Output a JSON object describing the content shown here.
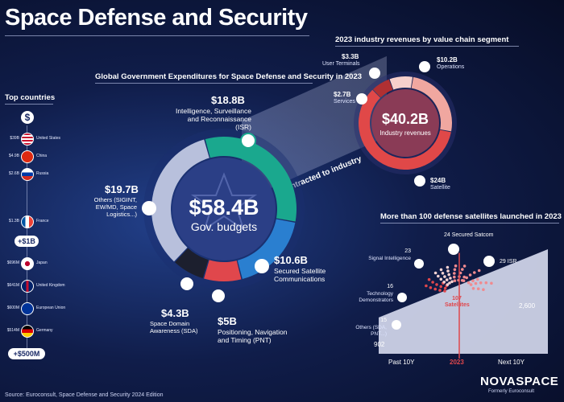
{
  "title": "Space Defense and Security",
  "left_panel": {
    "title": "Top countries",
    "rows": [
      {
        "value": "$39B",
        "country": "United States",
        "flag": "us-flag"
      },
      {
        "value": "$4.9B",
        "country": "China",
        "flag": "china-flag"
      },
      {
        "value": "$2.6B",
        "country": "Russia",
        "flag": "russia-flag"
      },
      {
        "value": "$1.3B",
        "country": "France",
        "flag": "france-flag"
      },
      {
        "value": "$696M",
        "country": "Japan",
        "flag": "japan-flag"
      },
      {
        "value": "$641M",
        "country": "United Kingdom",
        "flag": "uk-flag"
      },
      {
        "value": "$600M",
        "country": "European Union",
        "flag": "eu-flag"
      },
      {
        "value": "$514M",
        "country": "Germany",
        "flag": "germany-flag"
      }
    ],
    "threshold_1": "+$1B",
    "threshold_2": "+$500M"
  },
  "chart_data": [
    {
      "type": "pie",
      "title": "Global Government Expenditures for Space Defense and Security in 2023",
      "center_value": "$58.4B",
      "center_label": "Gov. budgets",
      "slices": [
        {
          "label": "Intelligence, Surveillance and Reconnaissance (ISR)",
          "value": 18.8,
          "display": "$18.8B",
          "color": "#1aa88e"
        },
        {
          "label": "Secured Satellite Communications",
          "value": 10.6,
          "display": "$10.6B",
          "color": "#2a7fd0"
        },
        {
          "label": "Positioning, Navigation and Timing (PNT)",
          "value": 5,
          "display": "$5B",
          "color": "#e0474c"
        },
        {
          "label": "Space Domain Awareness (SDA)",
          "value": 4.3,
          "display": "$4.3B",
          "color": "#1c1f2e"
        },
        {
          "label": "Others (SIGINT, EW/MD, Space Logistics...)",
          "value": 19.7,
          "display": "$19.7B",
          "color": "#b8c0dc"
        }
      ]
    },
    {
      "type": "pie",
      "title": "2023 industry revenues by value chain segment",
      "center_value": "$40.2B",
      "center_label": "Industry revenues",
      "slices": [
        {
          "label": "Operations",
          "value": 10.2,
          "display": "$10.2B",
          "color": "#f0a7a0"
        },
        {
          "label": "Satellite",
          "value": 24,
          "display": "$24B",
          "color": "#e04848"
        },
        {
          "label": "Services",
          "value": 2.7,
          "display": "$2.7B",
          "color": "#b03032"
        },
        {
          "label": "User Terminals",
          "value": 3.3,
          "display": "$3.3B",
          "color": "#f6d0cc"
        }
      ]
    },
    {
      "type": "area",
      "title": "More than 100 defense satellites launched in 2023",
      "x": [
        "Past 10Y",
        "2023",
        "Next 10Y"
      ],
      "values": [
        902,
        107,
        2600
      ],
      "value_labels": [
        "902",
        "107 Satellites",
        "2,600"
      ],
      "breakdown": [
        {
          "label": "Secured Satcom",
          "display": "24",
          "value": 24
        },
        {
          "label": "ISR",
          "display": "29",
          "value": 29
        },
        {
          "label": "Signal Intelligence",
          "display": "23",
          "value": 23
        },
        {
          "label": "Technology Demonstrators",
          "display": "16",
          "value": 16
        },
        {
          "label": "Others (SDA, PNT...)",
          "display": "15",
          "value": 15
        }
      ]
    }
  ],
  "band_label": "Contracted to industry",
  "logo": {
    "name": "NOVASPACE",
    "sub": "Formerly Euroconsult"
  },
  "source": "Source: Euroconsult, Space Defense and Security 2024 Edition"
}
